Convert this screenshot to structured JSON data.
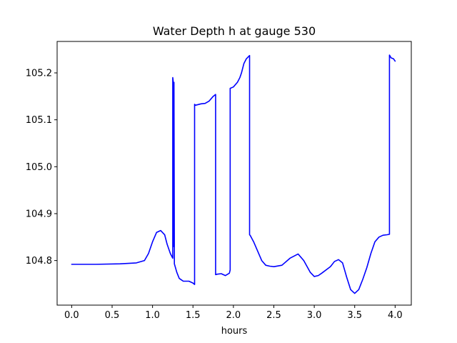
{
  "chart_data": {
    "type": "line",
    "title": "Water Depth h at gauge 530",
    "xlabel": "hours",
    "ylabel": "",
    "xlim": [
      -0.18,
      4.2
    ],
    "ylim": [
      104.705,
      105.267
    ],
    "xticks": [
      0.0,
      0.5,
      1.0,
      1.5,
      2.0,
      2.5,
      3.0,
      3.5,
      4.0
    ],
    "xtick_labels": [
      "0.0",
      "0.5",
      "1.0",
      "1.5",
      "2.0",
      "2.5",
      "3.0",
      "3.5",
      "4.0"
    ],
    "yticks": [
      104.8,
      104.9,
      105.0,
      105.1,
      105.2
    ],
    "ytick_labels": [
      "104.8",
      "104.9",
      "105.0",
      "105.1",
      "105.2"
    ],
    "grid": false,
    "legend": "none",
    "series": [
      {
        "color": "#0000ff",
        "x": [
          0.0,
          0.3,
          0.6,
          0.8,
          0.9,
          0.95,
          1.0,
          1.05,
          1.1,
          1.15,
          1.18,
          1.22,
          1.25,
          1.25,
          1.255,
          1.26,
          1.265,
          1.27,
          1.27,
          1.3,
          1.33,
          1.38,
          1.45,
          1.5,
          1.52,
          1.52,
          1.53,
          1.6,
          1.65,
          1.7,
          1.75,
          1.78,
          1.78,
          1.8,
          1.85,
          1.9,
          1.95,
          1.96,
          1.96,
          2.0,
          2.05,
          2.08,
          2.1,
          2.13,
          2.16,
          2.2,
          2.2,
          2.21,
          2.25,
          2.3,
          2.35,
          2.4,
          2.45,
          2.5,
          2.6,
          2.7,
          2.8,
          2.87,
          2.95,
          3.0,
          3.05,
          3.1,
          3.2,
          3.25,
          3.3,
          3.35,
          3.4,
          3.45,
          3.5,
          3.55,
          3.6,
          3.65,
          3.7,
          3.75,
          3.8,
          3.85,
          3.9,
          3.93,
          3.93,
          3.95,
          3.98,
          4.0
        ],
        "y": [
          104.792,
          104.792,
          104.793,
          104.795,
          104.8,
          104.815,
          104.84,
          104.86,
          104.864,
          104.855,
          104.835,
          104.815,
          104.805,
          105.19,
          105.183,
          104.83,
          105.18,
          104.8,
          104.793,
          104.775,
          104.762,
          104.756,
          104.756,
          104.752,
          104.749,
          105.133,
          105.131,
          105.134,
          105.135,
          105.14,
          105.15,
          105.154,
          104.77,
          104.771,
          104.772,
          104.768,
          104.773,
          104.78,
          105.167,
          105.17,
          105.18,
          105.19,
          105.2,
          105.22,
          105.23,
          105.237,
          104.855,
          104.853,
          104.84,
          104.82,
          104.8,
          104.79,
          104.788,
          104.787,
          104.79,
          104.805,
          104.814,
          104.8,
          104.775,
          104.766,
          104.768,
          104.774,
          104.787,
          104.798,
          104.802,
          104.795,
          104.765,
          104.738,
          104.73,
          104.738,
          104.76,
          104.785,
          104.815,
          104.84,
          104.85,
          104.854,
          104.855,
          104.856,
          105.238,
          105.232,
          105.23,
          105.225
        ]
      }
    ]
  }
}
